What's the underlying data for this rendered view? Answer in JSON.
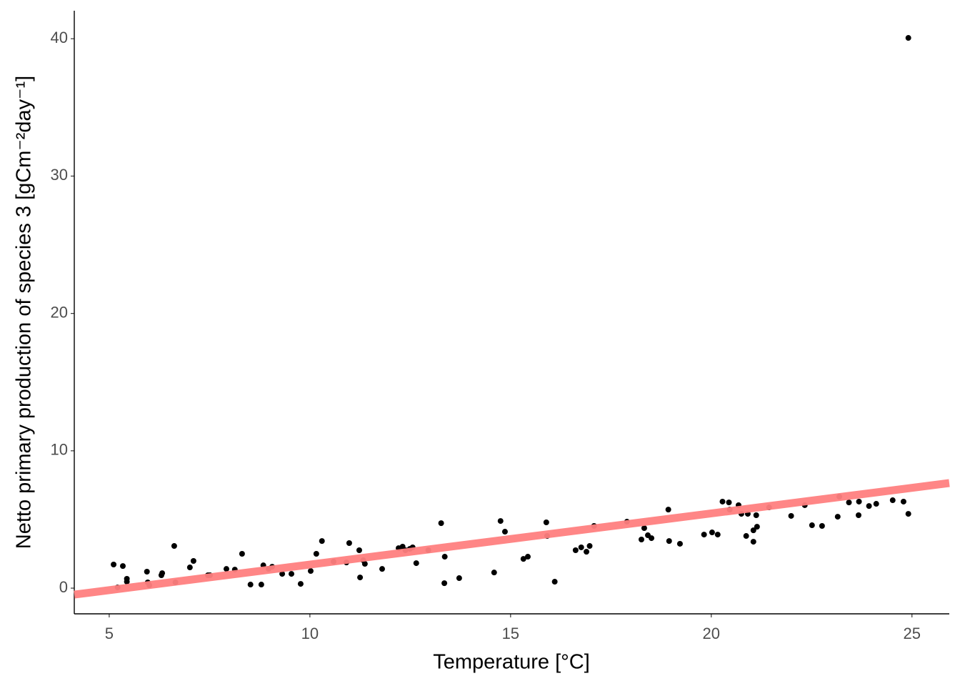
{
  "chart_data": {
    "type": "scatter",
    "x_label": "Temperature [°C]",
    "y_label": "Netto primary production of species 3 [gCm⁻²day⁻¹]",
    "x": [
      5.11,
      5.21,
      5.34,
      5.44,
      5.44,
      5.94,
      5.96,
      6.0,
      6.3,
      6.32,
      6.62,
      6.65,
      7.01,
      7.1,
      7.46,
      7.51,
      7.92,
      8.13,
      8.31,
      8.52,
      8.79,
      8.84,
      8.97,
      9.06,
      9.31,
      9.54,
      9.77,
      10.02,
      10.16,
      10.3,
      10.59,
      10.91,
      10.98,
      11.23,
      11.25,
      11.33,
      11.37,
      11.8,
      12.21,
      12.31,
      12.38,
      12.49,
      12.56,
      12.65,
      12.95,
      13.27,
      13.35,
      13.36,
      13.72,
      14.59,
      14.75,
      14.86,
      15.32,
      15.43,
      15.89,
      15.91,
      16.1,
      16.62,
      16.76,
      16.89,
      16.97,
      17.08,
      17.9,
      18.26,
      18.33,
      18.42,
      18.51,
      18.93,
      18.95,
      19.22,
      19.82,
      20.02,
      20.16,
      20.28,
      20.44,
      20.46,
      20.68,
      20.75,
      20.87,
      20.91,
      21.05,
      21.05,
      21.12,
      21.14,
      21.44,
      21.99,
      22.33,
      22.51,
      22.76,
      23.15,
      23.19,
      23.43,
      23.67,
      23.68,
      23.93,
      24.11,
      24.52,
      24.79,
      24.91,
      24.91
    ],
    "values": [
      1.72,
      0.05,
      1.61,
      0.68,
      0.47,
      1.2,
      0.42,
      0.21,
      0.94,
      1.09,
      3.07,
      0.42,
      1.51,
      1.98,
      0.94,
      0.94,
      1.4,
      1.35,
      2.5,
      0.26,
      0.26,
      1.66,
      1.4,
      1.56,
      1.04,
      1.04,
      0.31,
      1.25,
      2.5,
      3.43,
      1.93,
      1.87,
      3.28,
      2.76,
      0.78,
      2.03,
      1.77,
      1.4,
      2.91,
      3.02,
      2.76,
      2.86,
      2.97,
      1.82,
      2.76,
      4.73,
      0.36,
      2.29,
      0.73,
      1.14,
      4.89,
      4.11,
      2.13,
      2.29,
      4.79,
      3.8,
      0.47,
      2.76,
      2.97,
      2.65,
      3.07,
      4.53,
      4.84,
      3.54,
      4.37,
      3.85,
      3.64,
      5.72,
      3.43,
      3.23,
      3.9,
      4.06,
      3.9,
      6.3,
      6.24,
      5.72,
      6.04,
      5.41,
      3.8,
      5.41,
      4.21,
      3.38,
      5.31,
      4.47,
      5.88,
      5.26,
      6.04,
      4.58,
      4.53,
      5.2,
      6.66,
      6.24,
      5.31,
      6.3,
      5.98,
      6.14,
      6.4,
      6.3,
      5.41,
      40.06
    ],
    "color": "#000000",
    "trend_line": {
      "x": [
        4.13,
        25.93
      ],
      "values": [
        -0.47,
        7.65
      ],
      "color": "#ff7f7f"
    },
    "xlim": [
      4.13,
      25.93
    ],
    "xticks": [
      5,
      10,
      15,
      20,
      25
    ],
    "ylim": [
      -1.87,
      42.04
    ],
    "yticks": [
      0,
      10,
      20,
      30,
      40
    ],
    "grid": false
  }
}
